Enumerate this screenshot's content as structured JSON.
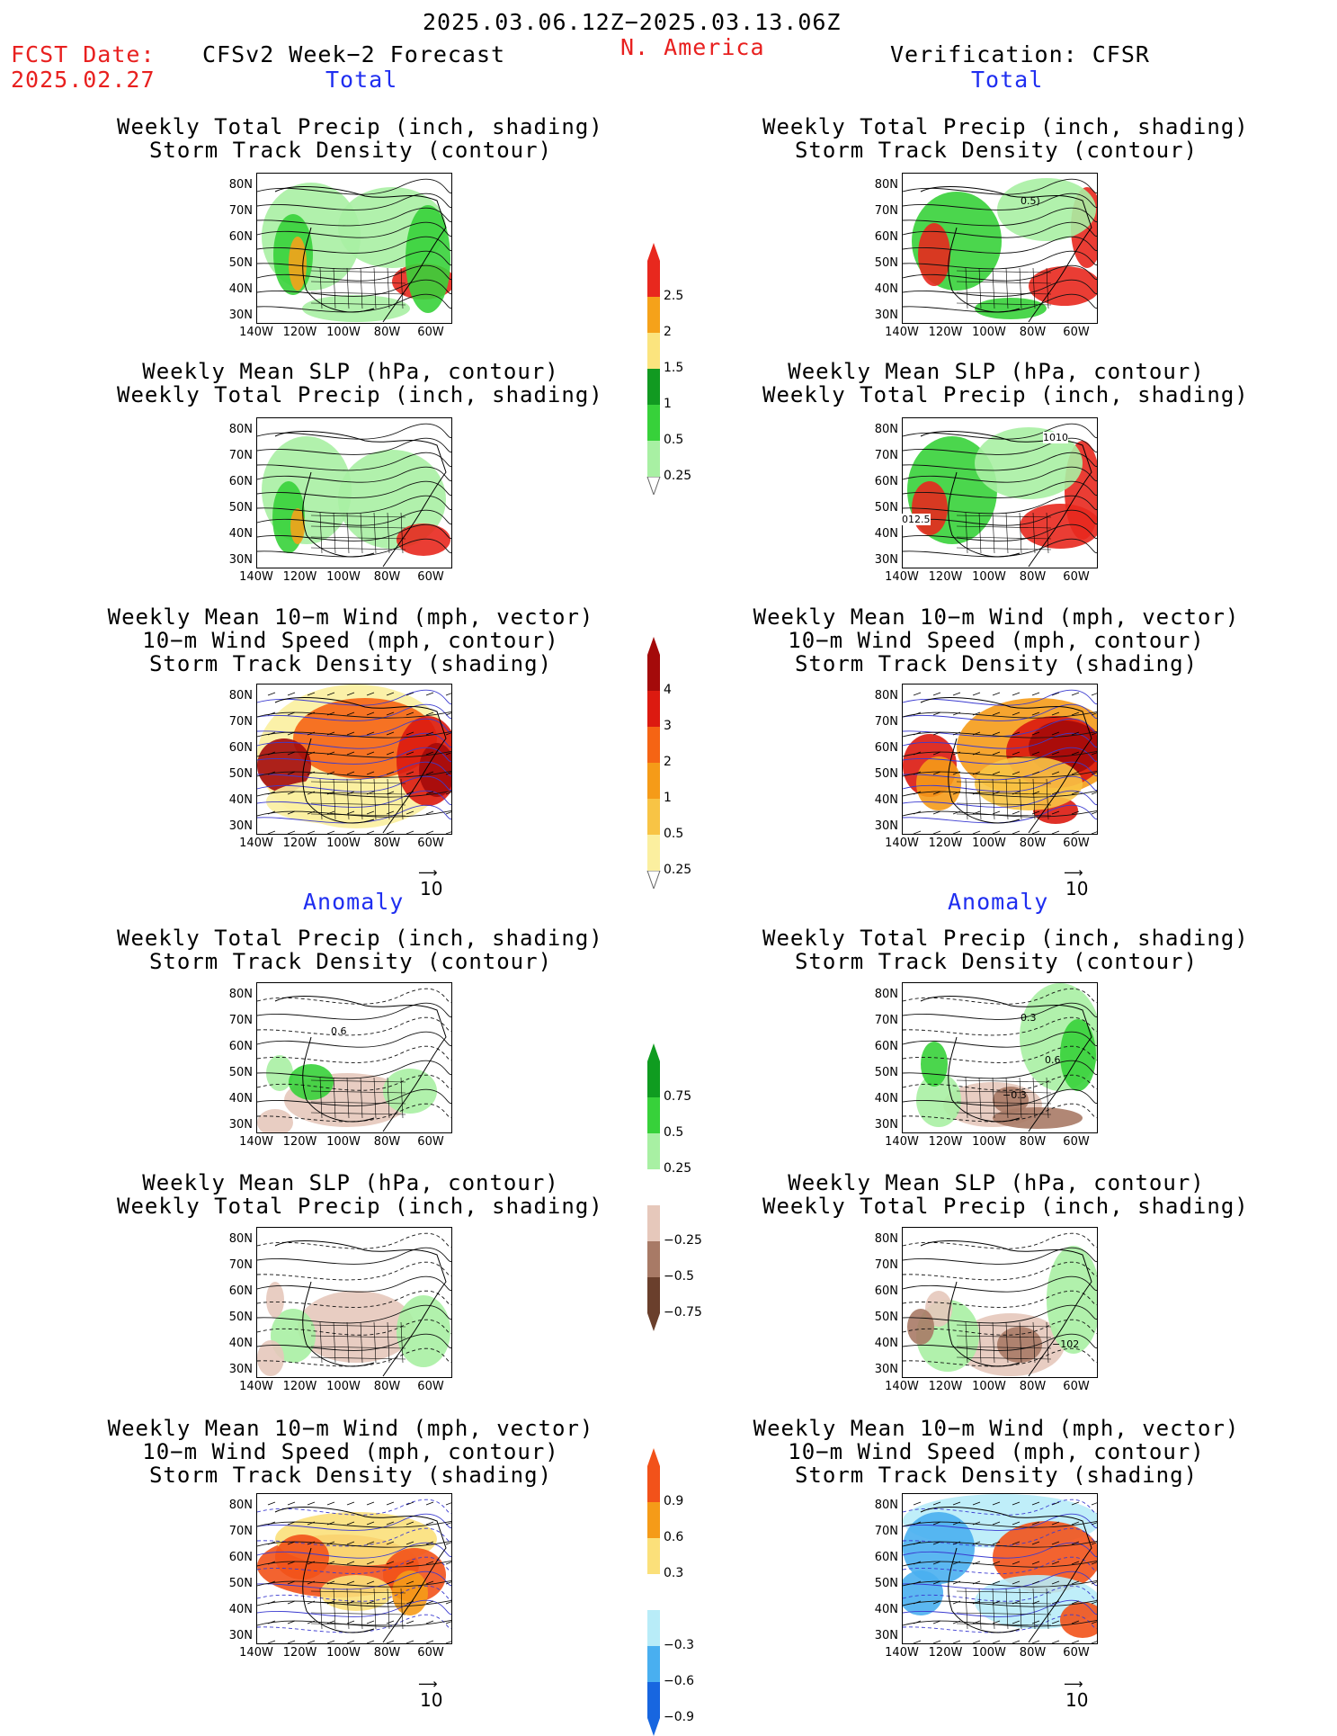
{
  "header": {
    "period": "2025.03.06.12Z−2025.03.13.06Z",
    "fcst_label": "FCST Date:",
    "fcst_date": "2025.02.27",
    "model": "CFSv2 Week−2 Forecast",
    "region": "N. America",
    "verification": "Verification: CFSR"
  },
  "sections": {
    "total": "Total",
    "anomaly": "Anomaly"
  },
  "panel_titles": {
    "precip_storm": [
      "Weekly Total Precip (inch, shading)",
      "Storm Track Density (contour)"
    ],
    "slp_precip": [
      "Weekly Mean SLP (hPa, contour)",
      "Weekly Total Precip (inch, shading)"
    ],
    "wind_storm": [
      "Weekly Mean 10−m Wind (mph, vector)",
      "10−m Wind Speed (mph, contour)",
      "Storm Track Density (shading)"
    ]
  },
  "axes": {
    "lat_labels": [
      "80N",
      "70N",
      "60N",
      "50N",
      "40N",
      "30N"
    ],
    "lon_labels": [
      "140W",
      "120W",
      "100W",
      "80W",
      "60W"
    ]
  },
  "vector_ref": "10",
  "colorbars": {
    "precip_total": {
      "labels": [
        "2.5",
        "2",
        "1.5",
        "1",
        "0.5",
        "0.25"
      ],
      "colors": [
        "#e8281e",
        "#f5a21a",
        "#fbe47e",
        "#119a21",
        "#37d13a",
        "#a8f0a3"
      ]
    },
    "storm_total": {
      "labels": [
        "4",
        "3",
        "2",
        "1",
        "0.5",
        "0.25"
      ],
      "colors": [
        "#a40a0a",
        "#dc1a10",
        "#f56414",
        "#f59b18",
        "#f8c445",
        "#fbef9f"
      ]
    },
    "precip_anom": {
      "labels": [
        "0.75",
        "0.5",
        "0.25",
        "−0.25",
        "−0.5",
        "−0.75"
      ],
      "colors": [
        "#0f9c20",
        "#37d13a",
        "#a8f0a3",
        "#ffffff",
        "#e6c8bb",
        "#a87a66",
        "#6a3f2c"
      ]
    },
    "storm_anom": {
      "labels": [
        "0.9",
        "0.6",
        "0.3",
        "−0.3",
        "−0.6",
        "−0.9"
      ],
      "colors": [
        "#f2521a",
        "#f59b18",
        "#fbe07a",
        "#ffffff",
        "#b8ecf8",
        "#49aff0",
        "#1766e0"
      ]
    }
  },
  "contour_labels": {
    "r1_fcst_total": "",
    "r1_obs_total": "0.5)",
    "r2_obs_a": "1010",
    "r2_obs_b": "012.5",
    "r4_fcst": "0.6",
    "r4_obs_a": "0.3",
    "r4_obs_b": "0.6",
    "r4_obs_c": "−0.3",
    "r5_obs": "−102"
  }
}
